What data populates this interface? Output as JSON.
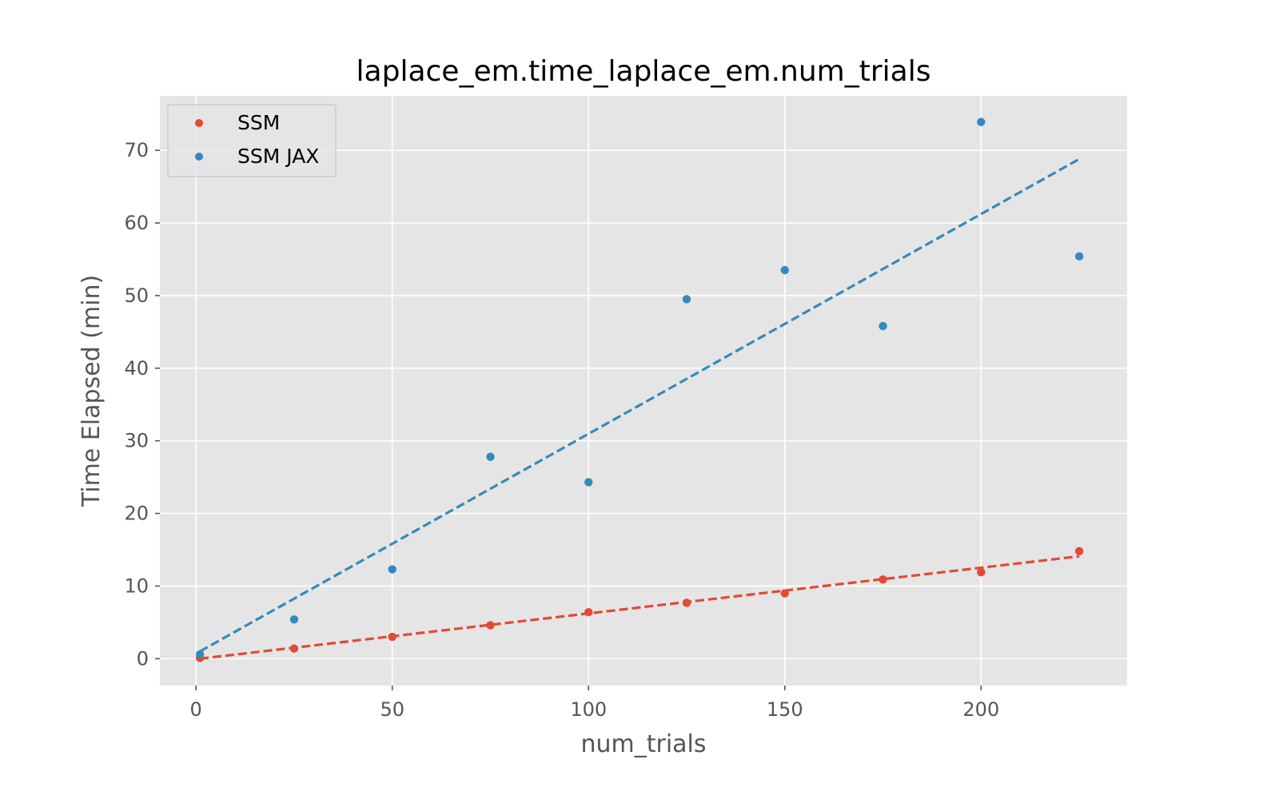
{
  "chart_data": {
    "type": "scatter",
    "title": "laplace_em.time_laplace_em.num_trials",
    "xlabel": "num_trials",
    "ylabel": "Time Elapsed (min)",
    "xlim": [
      -9.2,
      237.2
    ],
    "ylim": [
      -3.7,
      77.5
    ],
    "xticks": [
      0,
      50,
      100,
      150,
      200
    ],
    "yticks": [
      0,
      10,
      20,
      30,
      40,
      50,
      60,
      70
    ],
    "grid": true,
    "legend_position": "upper-left",
    "series": [
      {
        "name": "SSM",
        "color": "#E24A33",
        "x": [
          1,
          25,
          50,
          75,
          100,
          125,
          150,
          175,
          200,
          225
        ],
        "y": [
          0.1,
          1.4,
          3.0,
          4.6,
          6.4,
          7.7,
          9.0,
          10.9,
          11.9,
          14.8
        ],
        "fit": {
          "x": [
            1,
            225
          ],
          "y": [
            0.0,
            14.1
          ]
        }
      },
      {
        "name": "SSM JAX",
        "color": "#348ABD",
        "x": [
          1,
          25,
          50,
          75,
          100,
          125,
          150,
          175,
          200,
          225
        ],
        "y": [
          0.6,
          5.4,
          12.3,
          27.8,
          24.3,
          49.5,
          53.5,
          45.8,
          73.9,
          55.4
        ],
        "fit": {
          "x": [
            1,
            225
          ],
          "y": [
            1.0,
            68.8
          ]
        }
      }
    ]
  }
}
